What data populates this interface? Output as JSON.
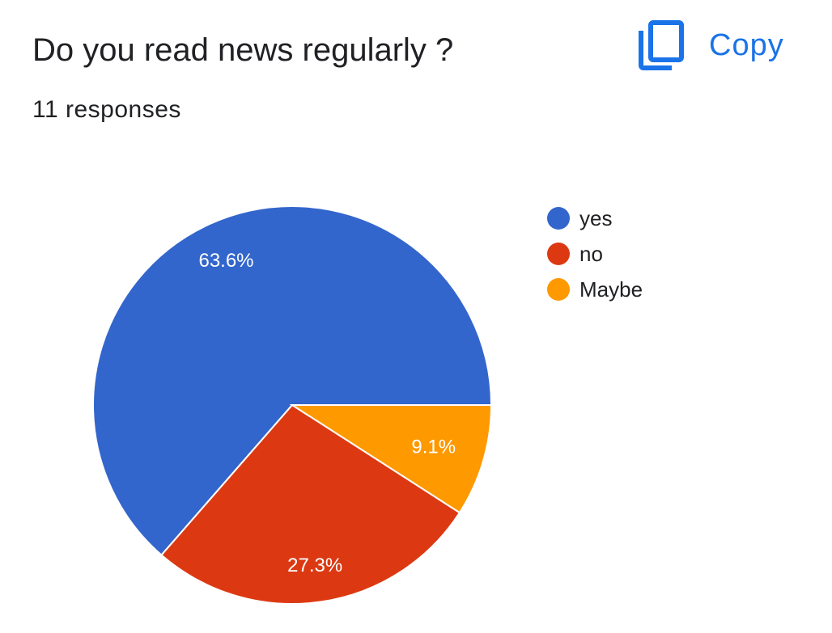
{
  "question": {
    "title": "Do you read news regularly ?",
    "responses": "11 responses"
  },
  "actions": {
    "copy_label": "Copy",
    "copy_icon": "copy-icon"
  },
  "colors": {
    "accent": "#1a73e8"
  },
  "chart_data": {
    "type": "pie",
    "categories": [
      "yes",
      "no",
      "Maybe"
    ],
    "values": [
      63.6,
      27.3,
      9.1
    ],
    "labels": [
      "63.6%",
      "27.3%",
      "9.1%"
    ],
    "colors": [
      "#3366cc",
      "#dc3912",
      "#ff9900"
    ],
    "legend_position": "right",
    "start": "3 o'clock, counter-clockwise"
  }
}
